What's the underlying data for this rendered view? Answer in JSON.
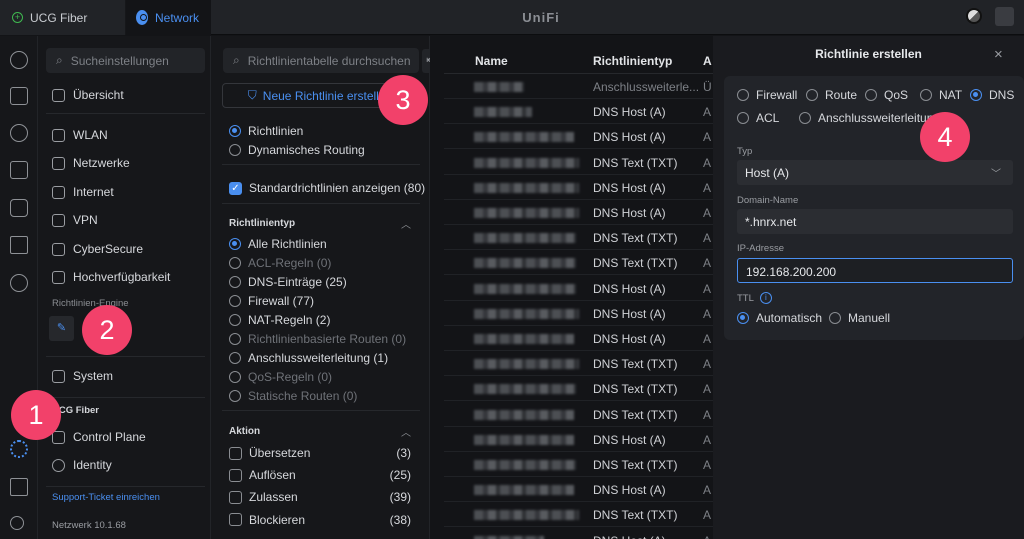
{
  "topbar": {
    "tab_ucg": "UCG Fiber",
    "tab_network": "Network",
    "title": "UniFi"
  },
  "sidebar": {
    "search_placeholder": "Sucheinstellungen",
    "overview": "Übersicht",
    "items": [
      "WLAN",
      "Netzwerke",
      "Internet",
      "VPN",
      "CyberSecure",
      "Hochverfügbarkeit"
    ],
    "engine_label": "Richtlinien-Engine",
    "system": "System",
    "device_section": "UCG Fiber",
    "control_plane": "Control Plane",
    "identity": "Identity",
    "support_link": "Support-Ticket einreichen",
    "version": "Netzwerk 10.1.68"
  },
  "filter": {
    "search_placeholder": "Richtlinientabelle durchsuchen",
    "new_button": "Neue Richtlinie erstellen",
    "mode": [
      "Richtlinien",
      "Dynamisches Routing"
    ],
    "show_default": "Standardrichtlinien anzeigen (80)",
    "type_header": "Richtlinientyp",
    "types": [
      {
        "label": "Alle Richtlinien",
        "on": true,
        "dim": false
      },
      {
        "label": "ACL-Regeln (0)",
        "dim": true
      },
      {
        "label": "DNS-Einträge (25)",
        "dim": false
      },
      {
        "label": "Firewall (77)",
        "dim": false
      },
      {
        "label": "NAT-Regeln (2)",
        "dim": false
      },
      {
        "label": "Richtlinienbasierte Routen (0)",
        "dim": true
      },
      {
        "label": "Anschlussweiterleitung (1)",
        "dim": false
      },
      {
        "label": "QoS-Regeln (0)",
        "dim": true
      },
      {
        "label": "Statische Routen (0)",
        "dim": true
      }
    ],
    "action_header": "Aktion",
    "actions": [
      {
        "label": "Übersetzen",
        "count": "(3)"
      },
      {
        "label": "Auflösen",
        "count": "(25)"
      },
      {
        "label": "Zulassen",
        "count": "(39)"
      },
      {
        "label": "Blockieren",
        "count": "(38)"
      }
    ]
  },
  "table": {
    "headers": [
      "Name",
      "Richtlinientyp",
      "A"
    ],
    "rows": [
      {
        "type": "Anschlussweiterle...",
        "c3": "Ü",
        "dim": true
      },
      {
        "type": "DNS Host (A)",
        "c3": "A"
      },
      {
        "type": "DNS Host (A)",
        "c3": "A"
      },
      {
        "type": "DNS Text (TXT)",
        "c3": "A"
      },
      {
        "type": "DNS Host (A)",
        "c3": "A"
      },
      {
        "type": "DNS Host (A)",
        "c3": "A"
      },
      {
        "type": "DNS Text (TXT)",
        "c3": "A"
      },
      {
        "type": "DNS Text (TXT)",
        "c3": "A"
      },
      {
        "type": "DNS Host (A)",
        "c3": "A"
      },
      {
        "type": "DNS Host (A)",
        "c3": "A"
      },
      {
        "type": "DNS Host (A)",
        "c3": "A"
      },
      {
        "type": "DNS Text (TXT)",
        "c3": "A"
      },
      {
        "type": "DNS Text (TXT)",
        "c3": "A"
      },
      {
        "type": "DNS Text (TXT)",
        "c3": "A"
      },
      {
        "type": "DNS Host (A)",
        "c3": "A"
      },
      {
        "type": "DNS Text (TXT)",
        "c3": "A"
      },
      {
        "type": "DNS Host (A)",
        "c3": "A"
      },
      {
        "type": "DNS Text (TXT)",
        "c3": "A"
      },
      {
        "type": "DNS Host (A)",
        "c3": "A"
      }
    ]
  },
  "panel": {
    "title": "Richtlinie erstellen",
    "kinds": [
      {
        "label": "Firewall"
      },
      {
        "label": "Route"
      },
      {
        "label": "QoS"
      },
      {
        "label": "NAT"
      },
      {
        "label": "DNS",
        "on": true
      },
      {
        "label": "ACL"
      },
      {
        "label": "Anschlussweiterleitung"
      }
    ],
    "typ_label": "Typ",
    "typ_value": "Host (A)",
    "domain_label": "Domain-Name",
    "domain_value": "*.hnrx.net",
    "ip_label": "IP-Adresse",
    "ip_value": "192.168.200.200",
    "ttl_label": "TTL",
    "ttl_options": [
      "Automatisch",
      "Manuell"
    ]
  },
  "badges": [
    "1",
    "2",
    "3",
    "4"
  ],
  "colors": {
    "accent": "#4a8ff0",
    "badge": "#f2416a",
    "background": "#131417"
  }
}
